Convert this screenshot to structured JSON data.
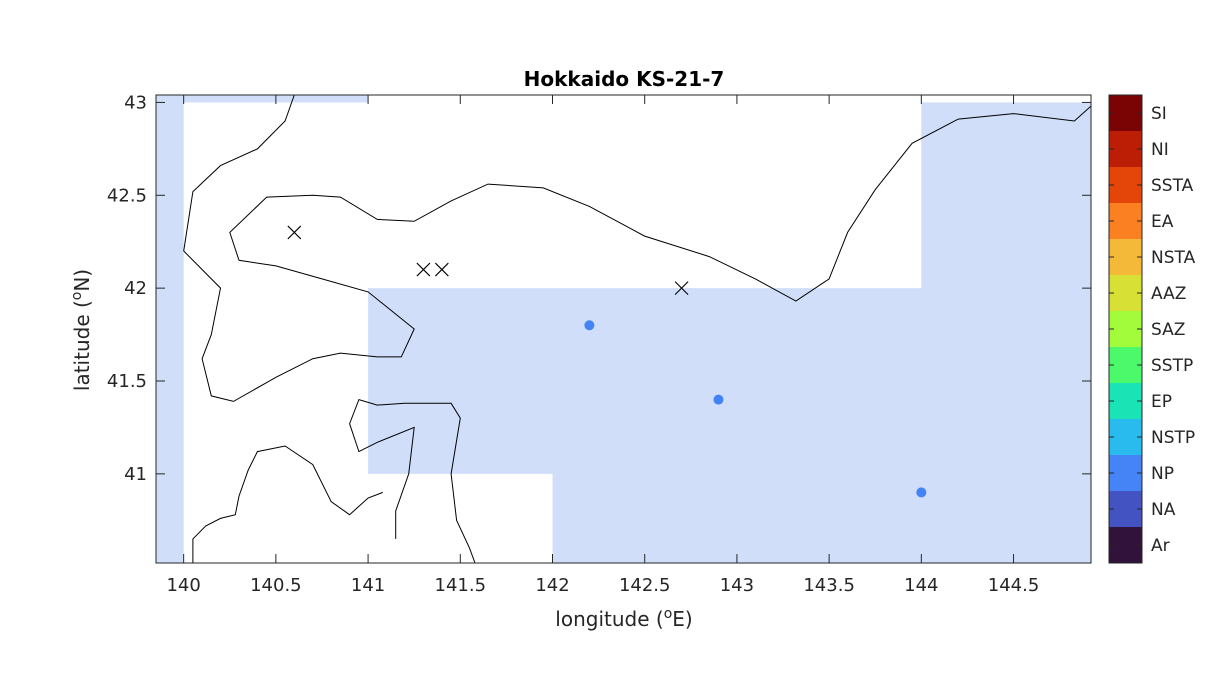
{
  "chart_data": {
    "type": "scatter",
    "title": "Hokkaido KS-21-7",
    "xlabel": "longitude (°E)",
    "ylabel": "latitude (°N)",
    "xlim": [
      139.85,
      144.92
    ],
    "ylim": [
      40.52,
      43.04
    ],
    "x_ticks": [
      140,
      140.5,
      141,
      141.5,
      142,
      142.5,
      143,
      143.5,
      144,
      144.5
    ],
    "y_ticks": [
      41,
      41.5,
      42,
      42.5,
      43
    ],
    "x_tick_labels": [
      "140",
      "140.5",
      "141",
      "141.5",
      "142",
      "142.5",
      "143",
      "143.5",
      "144",
      "144.5"
    ],
    "y_tick_labels": [
      "41",
      "41.5",
      "42",
      "42.5",
      "43"
    ],
    "shaded_color": "#d0defa",
    "shaded_regions": [
      [
        [
          139.85,
          40.52
        ],
        [
          140.0,
          40.52
        ],
        [
          140.0,
          43.04
        ],
        [
          139.85,
          43.04
        ]
      ],
      [
        [
          140.0,
          43.0
        ],
        [
          141.0,
          43.0
        ],
        [
          141.0,
          43.04
        ],
        [
          140.0,
          43.04
        ]
      ],
      [
        [
          141.0,
          41.0
        ],
        [
          141.0,
          42.0
        ],
        [
          144.0,
          42.0
        ],
        [
          144.0,
          43.0
        ],
        [
          144.92,
          43.0
        ],
        [
          144.92,
          40.52
        ],
        [
          142.0,
          40.52
        ],
        [
          142.0,
          41.0
        ]
      ]
    ],
    "coastline": [
      [
        [
          140.6,
          43.04
        ],
        [
          140.55,
          42.9
        ],
        [
          140.4,
          42.75
        ],
        [
          140.2,
          42.66
        ],
        [
          140.05,
          42.52
        ],
        [
          140.0,
          42.2
        ]
      ],
      [
        [
          140.0,
          42.2
        ],
        [
          140.2,
          42.0
        ],
        [
          140.15,
          41.75
        ],
        [
          140.1,
          41.62
        ],
        [
          140.15,
          41.42
        ],
        [
          140.27,
          41.39
        ],
        [
          140.5,
          41.52
        ],
        [
          140.7,
          41.62
        ],
        [
          140.85,
          41.65
        ],
        [
          141.05,
          41.63
        ],
        [
          141.18,
          41.63
        ],
        [
          141.25,
          41.78
        ],
        [
          141.0,
          41.98
        ],
        [
          140.75,
          42.05
        ],
        [
          140.5,
          42.12
        ],
        [
          140.3,
          42.15
        ],
        [
          140.25,
          42.3
        ],
        [
          140.45,
          42.49
        ],
        [
          140.7,
          42.5
        ],
        [
          140.85,
          42.49
        ],
        [
          141.05,
          42.37
        ],
        [
          141.25,
          42.36
        ],
        [
          141.45,
          42.47
        ],
        [
          141.65,
          42.56
        ],
        [
          141.95,
          42.54
        ],
        [
          142.2,
          42.44
        ],
        [
          142.5,
          42.28
        ],
        [
          142.85,
          42.17
        ],
        [
          143.1,
          42.05
        ],
        [
          143.32,
          41.93
        ],
        [
          143.5,
          42.05
        ],
        [
          143.6,
          42.3
        ],
        [
          143.75,
          42.53
        ],
        [
          143.95,
          42.78
        ],
        [
          144.2,
          42.91
        ],
        [
          144.5,
          42.94
        ],
        [
          144.83,
          42.9
        ],
        [
          144.92,
          42.98
        ]
      ],
      [
        [
          141.15,
          40.65
        ],
        [
          141.15,
          40.8
        ],
        [
          141.22,
          41.0
        ],
        [
          141.25,
          41.25
        ],
        [
          141.05,
          41.17
        ],
        [
          140.95,
          41.12
        ],
        [
          140.9,
          41.27
        ],
        [
          140.95,
          41.4
        ],
        [
          141.05,
          41.37
        ],
        [
          141.2,
          41.38
        ],
        [
          141.35,
          41.38
        ],
        [
          141.45,
          41.38
        ],
        [
          141.5,
          41.3
        ],
        [
          141.45,
          41.0
        ],
        [
          141.48,
          40.75
        ],
        [
          141.55,
          40.6
        ],
        [
          141.58,
          40.52
        ]
      ],
      [
        [
          140.05,
          40.52
        ],
        [
          140.05,
          40.65
        ],
        [
          140.12,
          40.72
        ],
        [
          140.2,
          40.76
        ],
        [
          140.28,
          40.78
        ],
        [
          140.3,
          40.88
        ],
        [
          140.35,
          41.02
        ],
        [
          140.4,
          41.12
        ],
        [
          140.55,
          41.15
        ],
        [
          140.7,
          41.05
        ],
        [
          140.8,
          40.85
        ],
        [
          140.9,
          40.78
        ],
        [
          141.0,
          40.87
        ],
        [
          141.08,
          40.9
        ]
      ]
    ],
    "markers_x": [
      [
        140.6,
        42.3
      ],
      [
        141.3,
        42.1
      ],
      [
        141.4,
        42.1
      ],
      [
        142.7,
        42.0
      ]
    ],
    "markers_dot": [
      [
        142.2,
        41.8
      ],
      [
        142.9,
        41.4
      ],
      [
        144.0,
        40.9
      ]
    ],
    "dot_color": "#4284f5",
    "colorbar": {
      "labels": [
        "SI",
        "NI",
        "SSTA",
        "EA",
        "NSTA",
        "AAZ",
        "SAZ",
        "SSTP",
        "EP",
        "NSTP",
        "NP",
        "NA",
        "Ar"
      ],
      "colors": [
        "#7a0403",
        "#bb1e05",
        "#e4460a",
        "#fb8022",
        "#f5b93a",
        "#d6e035",
        "#a2fc3c",
        "#4cf96a",
        "#1ae4b5",
        "#29bbed",
        "#4584f7",
        "#4353c1",
        "#30123b"
      ]
    }
  }
}
